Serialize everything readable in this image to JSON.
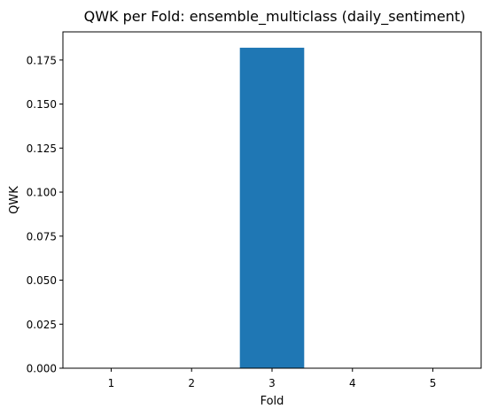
{
  "chart_data": {
    "type": "bar",
    "title": "QWK per Fold: ensemble_multiclass (daily_sentiment)",
    "xlabel": "Fold",
    "ylabel": "QWK",
    "categories": [
      "1",
      "2",
      "3",
      "4",
      "5"
    ],
    "values": [
      0.0,
      0.0,
      0.182,
      0.0,
      0.0
    ],
    "ylim": [
      0,
      0.191
    ],
    "yticks": [
      "0.000",
      "0.025",
      "0.050",
      "0.075",
      "0.100",
      "0.125",
      "0.150",
      "0.175"
    ],
    "grid": false,
    "bar_color": "#1f77b4"
  }
}
